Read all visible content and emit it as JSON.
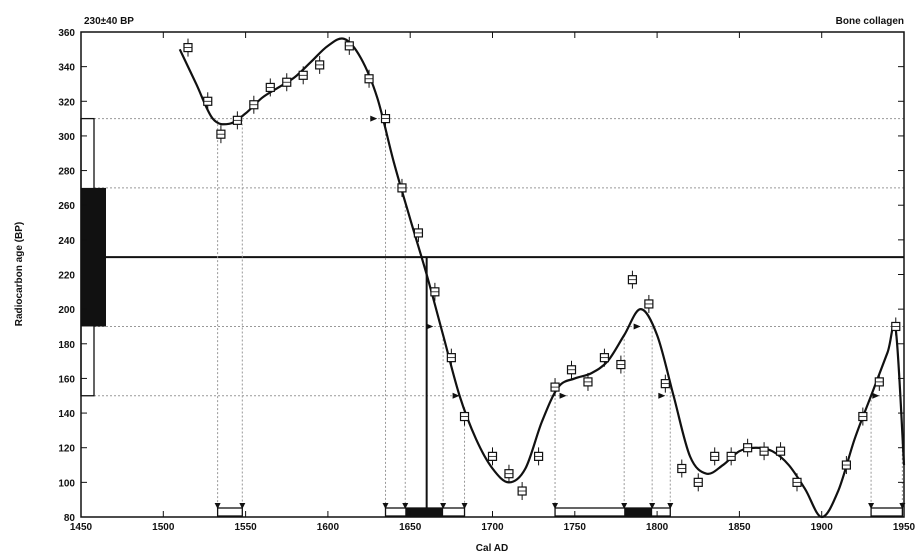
{
  "chart_data": {
    "type": "line",
    "title_left": "230±40 BP",
    "title_right": "Bone collagen",
    "xlabel": "Cal AD",
    "ylabel": "Radiocarbon age (BP)",
    "xlim": [
      1450,
      1950
    ],
    "ylim": [
      80,
      360
    ],
    "xticks": [
      1450,
      1500,
      1550,
      1600,
      1650,
      1700,
      1750,
      1800,
      1850,
      1900,
      1950
    ],
    "yticks": [
      80,
      100,
      120,
      140,
      160,
      180,
      200,
      220,
      240,
      260,
      280,
      300,
      320,
      340,
      360
    ],
    "grid": false,
    "series": [
      {
        "kind": "calibration-curve",
        "x": [
          1510,
          1520,
          1530,
          1540,
          1550,
          1560,
          1570,
          1580,
          1590,
          1600,
          1610,
          1620,
          1630,
          1640,
          1650,
          1660,
          1670,
          1680,
          1690,
          1700,
          1710,
          1720,
          1730,
          1740,
          1750,
          1760,
          1770,
          1780,
          1790,
          1800,
          1810,
          1820,
          1830,
          1840,
          1850,
          1860,
          1870,
          1880,
          1890,
          1900,
          1910,
          1920,
          1930,
          1940,
          1945,
          1950
        ],
        "y": [
          350,
          330,
          310,
          307,
          313,
          322,
          328,
          334,
          343,
          352,
          356,
          345,
          322,
          285,
          252,
          220,
          185,
          150,
          125,
          108,
          100,
          108,
          135,
          155,
          160,
          163,
          170,
          185,
          200,
          185,
          150,
          115,
          105,
          110,
          118,
          120,
          118,
          110,
          96,
          80,
          95,
          125,
          150,
          175,
          188,
          110
        ]
      },
      {
        "kind": "measurements",
        "x": [
          1515,
          1527,
          1535,
          1545,
          1555,
          1565,
          1575,
          1585,
          1595,
          1613,
          1625,
          1635,
          1645,
          1655,
          1665,
          1675,
          1683,
          1700,
          1710,
          1718,
          1728,
          1738,
          1748,
          1758,
          1768,
          1778,
          1785,
          1795,
          1805,
          1815,
          1825,
          1835,
          1845,
          1855,
          1865,
          1875,
          1885,
          1915,
          1925,
          1935,
          1945
        ],
        "y": [
          351,
          320,
          301,
          309,
          318,
          328,
          331,
          335,
          341,
          352,
          333,
          310,
          270,
          244,
          210,
          172,
          138,
          115,
          105,
          95,
          115,
          155,
          165,
          158,
          172,
          168,
          217,
          203,
          157,
          108,
          100,
          115,
          115,
          120,
          118,
          118,
          100,
          110,
          138,
          158,
          190
        ]
      }
    ],
    "sample": {
      "age_bp": 230,
      "error": 40,
      "range_1sigma": [
        190,
        270
      ],
      "range_2sigma": [
        150,
        310
      ]
    },
    "intercepts_2sigma": [
      1533,
      1548,
      1635,
      1647,
      1670,
      1683,
      1738,
      1780,
      1797,
      1808,
      1930,
      1949
    ],
    "calibrated_ranges": {
      "two_sigma": [
        [
          1533,
          1548
        ],
        [
          1635,
          1683
        ],
        [
          1738,
          1808
        ],
        [
          1930,
          1949
        ]
      ],
      "one_sigma": [
        [
          1647,
          1670
        ],
        [
          1780,
          1797
        ]
      ]
    }
  }
}
